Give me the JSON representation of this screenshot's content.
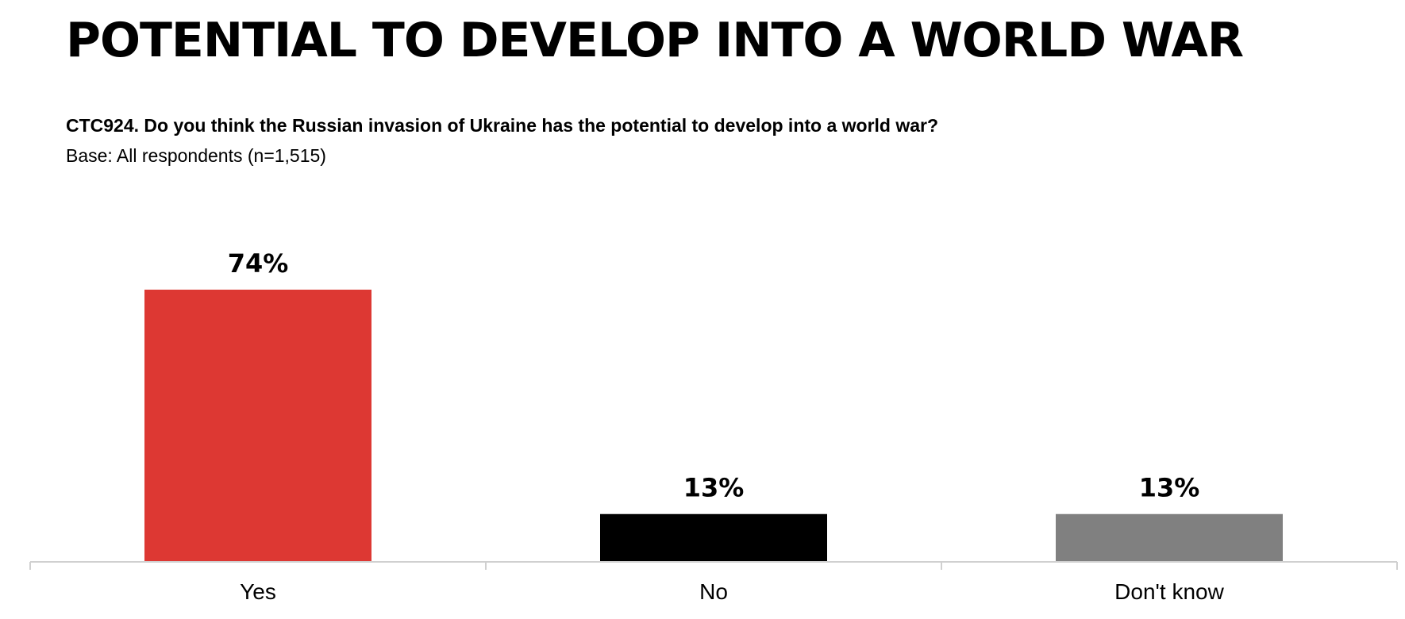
{
  "header": {
    "title": "POTENTIAL TO DEVELOP INTO A WORLD WAR",
    "question": "CTC924. Do you think the Russian invasion of Ukraine has the potential to develop into a world war?",
    "base": "Base: All respondents (n=1,515)"
  },
  "chart_data": {
    "type": "bar",
    "categories": [
      "Yes",
      "No",
      "Don't know"
    ],
    "values": [
      74,
      13,
      13
    ],
    "data_labels": [
      "74%",
      "13%",
      "13%"
    ],
    "colors": [
      "#DD3833",
      "#000000",
      "#808080"
    ],
    "ylim": [
      0,
      80
    ],
    "grid": false,
    "legend": "none"
  }
}
